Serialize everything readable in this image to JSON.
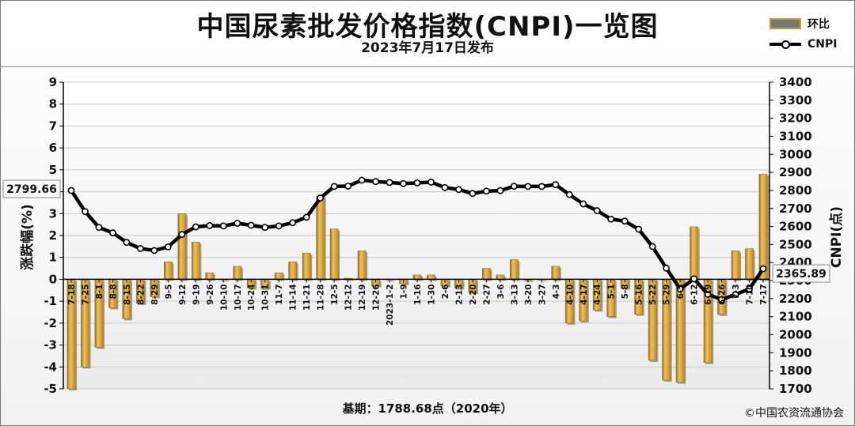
{
  "header": {
    "title": "中国尿素批发价格指数(CNPI)一览图",
    "subtitle": "2023年7月17日发布"
  },
  "legend": {
    "bar_label": "环比",
    "line_label": "CNPI",
    "bar_color": "#d9a73a",
    "line_color": "#000000"
  },
  "footer": {
    "base_text": "基期：1788.68点（2020年）",
    "copyright": "©中国农资流通协会"
  },
  "callouts": {
    "start_value": "2799.66",
    "end_value": "2365.89"
  },
  "chart_data": {
    "type": "bar",
    "categories": [
      "7-18",
      "7-25",
      "8-1",
      "8-8",
      "8-15",
      "8-22",
      "8-29",
      "9-5",
      "9-12",
      "9-19",
      "9-26",
      "10-10",
      "10-17",
      "10-24",
      "10-31",
      "11-7",
      "11-14",
      "11-21",
      "11-28",
      "12-5",
      "12-12",
      "12-19",
      "12-26",
      "2023-1-2",
      "1-9",
      "1-16",
      "1-30",
      "2-6",
      "2-13",
      "2-20",
      "2-27",
      "3-6",
      "3-13",
      "3-20",
      "3-27",
      "4-3",
      "4-10",
      "4-17",
      "4-24",
      "5-1",
      "5-8",
      "5-16",
      "5-22",
      "5-29",
      "6-5",
      "6-12",
      "6-19",
      "6-26",
      "7-3",
      "7-10",
      "7-17"
    ],
    "series": [
      {
        "name": "环比",
        "axis": "left",
        "values": [
          -5.0,
          -4.0,
          -3.1,
          -1.3,
          -1.8,
          -1.1,
          -0.8,
          0.8,
          3.0,
          1.7,
          0.3,
          0.0,
          0.6,
          -0.4,
          -0.4,
          0.3,
          0.8,
          1.2,
          3.8,
          2.3,
          0.05,
          1.3,
          -0.3,
          0.0,
          -0.2,
          0.2,
          0.2,
          -0.3,
          -0.4,
          -0.6,
          0.5,
          0.2,
          0.9,
          -0.05,
          0.0,
          0.6,
          -2.0,
          -1.9,
          -1.4,
          -1.7,
          -0.4,
          -1.6,
          -3.7,
          -4.6,
          -4.7,
          2.4,
          -3.8,
          -1.6,
          1.3,
          1.4,
          4.8
        ]
      },
      {
        "name": "CNPI",
        "axis": "right",
        "values": [
          2799.66,
          2683,
          2595,
          2565,
          2512,
          2478,
          2467,
          2487,
          2556,
          2598,
          2605,
          2603,
          2618,
          2607,
          2595,
          2603,
          2621,
          2651,
          2758,
          2822,
          2824,
          2857,
          2849,
          2844,
          2838,
          2842,
          2846,
          2816,
          2805,
          2783,
          2796,
          2799,
          2823,
          2822,
          2822,
          2832,
          2777,
          2725,
          2688,
          2641,
          2630,
          2585,
          2489,
          2369,
          2253,
          2310,
          2224,
          2195,
          2223,
          2254,
          2365.89
        ]
      }
    ],
    "ylabel": "涨跌幅(%)",
    "y2label": "CNPI(点)",
    "ylim": [
      -5,
      9
    ],
    "y2lim": [
      1700,
      3400
    ],
    "grid": true,
    "legend_position": "top-right"
  }
}
